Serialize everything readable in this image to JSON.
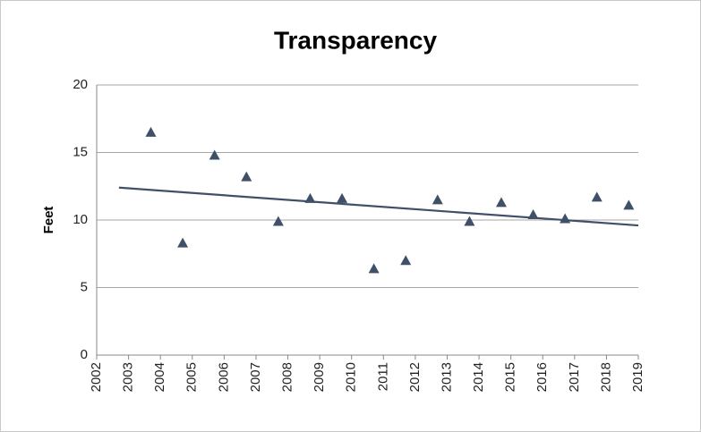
{
  "chart_data": {
    "type": "scatter",
    "title": "Transparency",
    "y_label": "Feet",
    "x": [
      2003.7,
      2004.7,
      2005.7,
      2006.7,
      2007.7,
      2008.7,
      2009.7,
      2010.7,
      2011.7,
      2012.7,
      2013.7,
      2014.7,
      2015.7,
      2016.7,
      2017.7,
      2018.7
    ],
    "values": [
      16.5,
      8.3,
      14.8,
      13.2,
      9.9,
      11.6,
      11.6,
      6.4,
      7.0,
      11.5,
      9.9,
      11.3,
      10.4,
      10.1,
      11.7,
      11.1
    ],
    "color": "#3f5068",
    "trendline": {
      "x": [
        2002.7,
        2019
      ],
      "y": [
        12.4,
        9.6
      ],
      "color": "#3f5068"
    },
    "xlim": [
      2002,
      2019
    ],
    "xticks": [
      2002,
      2003,
      2004,
      2005,
      2006,
      2007,
      2008,
      2009,
      2010,
      2011,
      2012,
      2013,
      2014,
      2015,
      2016,
      2017,
      2018,
      2019
    ],
    "ylim": [
      0,
      20
    ],
    "yticks": [
      0,
      5,
      10,
      15,
      20
    ],
    "grid": true
  }
}
